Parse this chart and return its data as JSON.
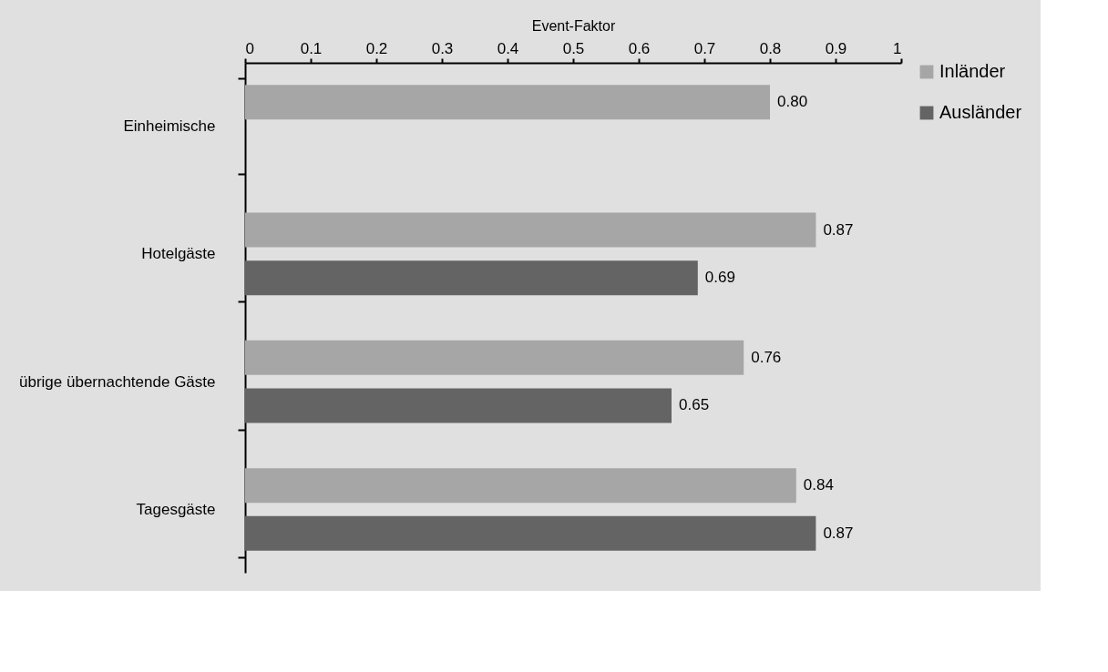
{
  "chart_data": {
    "type": "bar",
    "orientation": "horizontal",
    "xlabel": "Event-Faktor",
    "categories": [
      "Einheimische",
      "Hotelgäste",
      "übrige übernachtende Gäste",
      "Tagesgäste"
    ],
    "series": [
      {
        "name": "Inländer",
        "color": "#a6a6a6",
        "values": [
          0.8,
          0.87,
          0.76,
          0.84
        ],
        "value_labels": [
          "0.80",
          "0.87",
          "0.76",
          "0.84"
        ]
      },
      {
        "name": "Ausländer",
        "color": "#646464",
        "values": [
          null,
          0.69,
          0.65,
          0.87
        ],
        "value_labels": [
          null,
          "0.69",
          "0.65",
          "0.87"
        ]
      }
    ],
    "xlim": [
      0,
      1
    ],
    "xticks": [
      0,
      0.1,
      0.2,
      0.3,
      0.4,
      0.5,
      0.6,
      0.7,
      0.8,
      0.9,
      1
    ],
    "legend": "right"
  }
}
